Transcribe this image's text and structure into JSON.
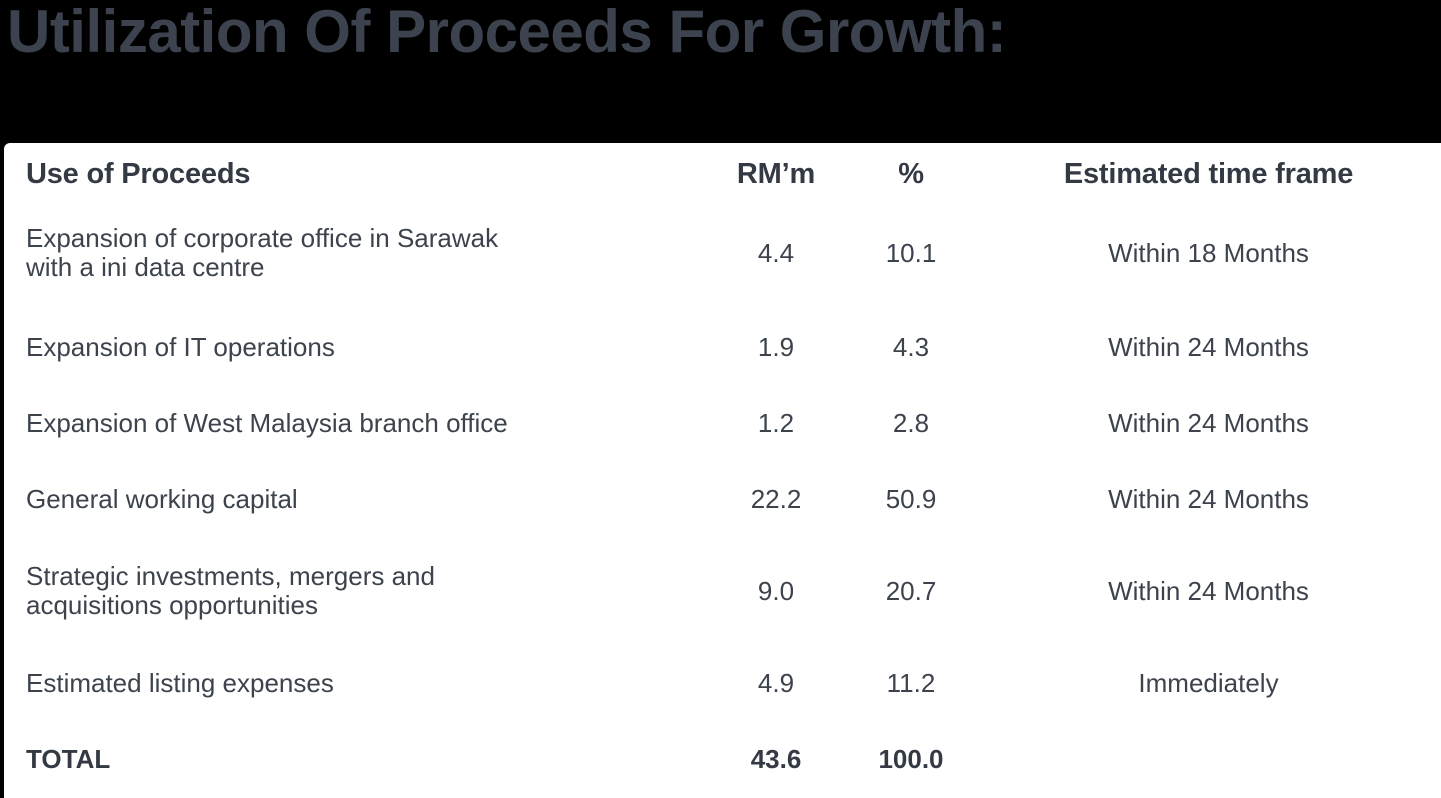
{
  "page": {
    "background_color": "#000000",
    "card_color": "#ffffff",
    "title_color": "#3d434e",
    "text_color": "#3d434d"
  },
  "title": "Utilization Of Proceeds For Growth:",
  "table": {
    "headers": [
      "Use of Proceeds",
      "RM’m",
      "%",
      "Estimated time frame"
    ],
    "rows": [
      {
        "use": "Expansion of corporate office in Sarawak\nwith a ini data centre",
        "rm": "4.4",
        "pct": "10.1",
        "timeframe": "Within 18 Months"
      },
      {
        "use": "Expansion of IT operations",
        "rm": "1.9",
        "pct": "4.3",
        "timeframe": "Within 24 Months"
      },
      {
        "use": "Expansion of West Malaysia branch office",
        "rm": "1.2",
        "pct": "2.8",
        "timeframe": "Within 24 Months"
      },
      {
        "use": "General working capital",
        "rm": "22.2",
        "pct": "50.9",
        "timeframe": "Within 24 Months"
      },
      {
        "use": "Strategic investments, mergers and\nacquisitions opportunities",
        "rm": "9.0",
        "pct": "20.7",
        "timeframe": "Within 24 Months"
      },
      {
        "use": "Estimated listing expenses",
        "rm": "4.9",
        "pct": "11.2",
        "timeframe": "Immediately"
      }
    ],
    "total": {
      "label": "TOTAL",
      "rm": "43.6",
      "pct": "100.0",
      "timeframe": ""
    }
  }
}
